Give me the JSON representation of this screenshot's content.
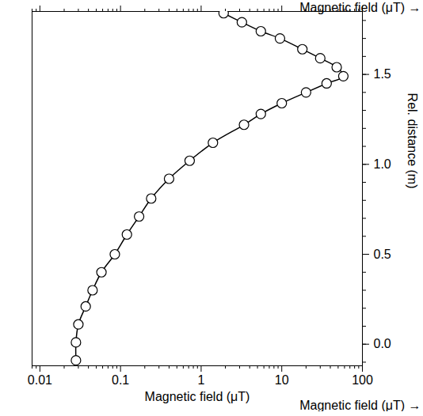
{
  "chart_data": {
    "type": "line",
    "x_label": "Magnetic field (μT)",
    "y_label": "Rel. distance (m)",
    "x": [
      0.028,
      0.028,
      0.03,
      0.037,
      0.045,
      0.058,
      0.085,
      0.12,
      0.17,
      0.24,
      0.4,
      0.72,
      1.4,
      3.4,
      5.5,
      10,
      20,
      36,
      58,
      48,
      30,
      18,
      9.5,
      5.5,
      3.2,
      1.9
    ],
    "values": [
      -0.09,
      0.01,
      0.11,
      0.21,
      0.3,
      0.4,
      0.5,
      0.61,
      0.71,
      0.81,
      0.92,
      1.02,
      1.12,
      1.22,
      1.28,
      1.34,
      1.4,
      1.45,
      1.49,
      1.54,
      1.59,
      1.64,
      1.7,
      1.74,
      1.79,
      1.84
    ],
    "xlim": [
      0.008,
      100
    ],
    "ylim": [
      -0.12,
      1.85
    ],
    "xticks": [
      0.01,
      0.1,
      1,
      10,
      100
    ],
    "yticks": [
      {
        "value": 0,
        "label": "0.0"
      },
      {
        "value": 0.5,
        "label": "0.5"
      },
      {
        "value": 1,
        "label": "1.0"
      },
      {
        "value": 1.5,
        "label": "1.5"
      }
    ],
    "log": "x",
    "grid": false,
    "color": "#000000",
    "marker": "circle",
    "line_style": "solid"
  }
}
